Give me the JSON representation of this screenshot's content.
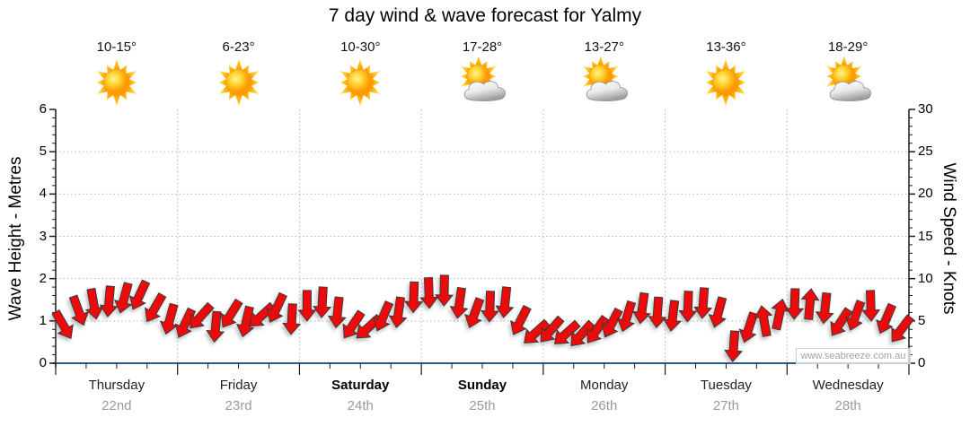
{
  "title": "7 day wind & wave forecast for Yalmy",
  "watermark": "www.seabreeze.com.au",
  "days": [
    {
      "name": "Thursday",
      "date": "22nd",
      "temp": "10-15°",
      "icon": "sunny",
      "bold": false
    },
    {
      "name": "Friday",
      "date": "23rd",
      "temp": "6-23°",
      "icon": "sunny",
      "bold": false
    },
    {
      "name": "Saturday",
      "date": "24th",
      "temp": "10-30°",
      "icon": "sunny",
      "bold": true
    },
    {
      "name": "Sunday",
      "date": "25th",
      "temp": "17-28°",
      "icon": "partly-cloudy",
      "bold": true
    },
    {
      "name": "Monday",
      "date": "26th",
      "temp": "13-27°",
      "icon": "partly-cloudy",
      "bold": false
    },
    {
      "name": "Tuesday",
      "date": "27th",
      "temp": "13-36°",
      "icon": "sunny",
      "bold": false
    },
    {
      "name": "Wednesday",
      "date": "28th",
      "temp": "18-29°",
      "icon": "partly-cloudy",
      "bold": false
    }
  ],
  "axes": {
    "left": {
      "title": "Wave Height - Metres",
      "ticks": [
        0,
        1,
        2,
        3,
        4,
        5,
        6
      ]
    },
    "right": {
      "title": "Wind Speed - Knots",
      "ticks": [
        0,
        5,
        10,
        15,
        20,
        25,
        30
      ]
    }
  },
  "chart_data": {
    "type": "wind_arrow_band",
    "title": "7 day wind & wave forecast for Yalmy",
    "x_categories": [
      "Thursday 22nd",
      "Friday 23rd",
      "Saturday 24th",
      "Sunday 25th",
      "Monday 26th",
      "Tuesday 27th",
      "Wednesday 28th"
    ],
    "points_per_day": 8,
    "left_axis": {
      "label": "Wave Height - Metres",
      "range": [
        0,
        6
      ],
      "major_ticks": [
        0,
        1,
        2,
        3,
        4,
        5,
        6
      ]
    },
    "right_axis": {
      "label": "Wind Speed - Knots",
      "range": [
        0,
        30
      ],
      "major_ticks": [
        0,
        5,
        10,
        15,
        20,
        25,
        30
      ]
    },
    "grid": {
      "h_gridlines_metres": [
        1,
        2,
        3,
        4,
        5
      ],
      "v_gridlines_at_day_boundaries": true
    },
    "series": [
      {
        "name": "Wind speed & direction",
        "unit": "knots",
        "knots": [
          4.5,
          6.2,
          7.0,
          7.3,
          7.7,
          8.0,
          6.5,
          5.2,
          4.7,
          5.5,
          4.3,
          5.8,
          4.9,
          5.6,
          6.5,
          5.2,
          6.8,
          7.2,
          6.0,
          4.5,
          4.2,
          5.5,
          6.0,
          7.8,
          8.3,
          8.6,
          7.1,
          5.9,
          6.7,
          7.2,
          5.0,
          3.6,
          3.9,
          3.5,
          3.4,
          3.9,
          4.7,
          5.5,
          6.5,
          6.0,
          5.6,
          6.7,
          7.1,
          6.0,
          2.0,
          4.2,
          5.0,
          5.8,
          7.0,
          7.0,
          6.5,
          4.8,
          5.6,
          6.8,
          5.2,
          4.0
        ],
        "dir_deg_toward": [
          150,
          160,
          170,
          185,
          195,
          205,
          210,
          195,
          205,
          222,
          185,
          212,
          193,
          228,
          205,
          183,
          180,
          183,
          186,
          214,
          228,
          203,
          188,
          182,
          178,
          181,
          188,
          200,
          182,
          186,
          207,
          228,
          221,
          228,
          222,
          215,
          207,
          197,
          188,
          184,
          187,
          182,
          184,
          195,
          184,
          198,
          350,
          12,
          182,
          5,
          186,
          213,
          200,
          178,
          203,
          217
        ]
      }
    ],
    "colors": {
      "arrow_fill": "#ee0a0a",
      "arrow_outline": "#3a3a3a",
      "bottom_axis": "#2a5d84",
      "axis_line": "#1a1a1a",
      "gridline": "#b5b5b5",
      "date_text": "#999999",
      "watermark_text": "#a3a3a3"
    }
  }
}
